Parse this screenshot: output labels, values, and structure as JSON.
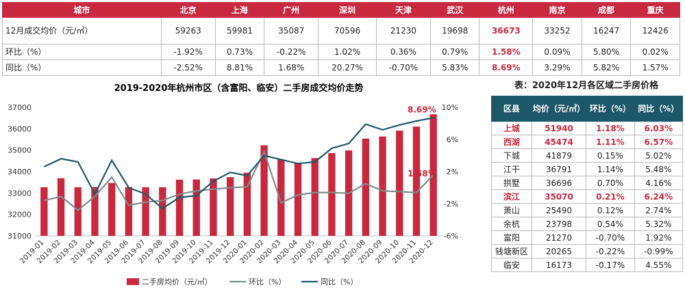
{
  "top_table": {
    "headers": [
      "城市",
      "北京",
      "上海",
      "广州",
      "深圳",
      "天津",
      "武汉",
      "杭州",
      "南京",
      "成都",
      "重庆"
    ],
    "rows": [
      {
        "label": "12月成交均价（元/㎡）",
        "values": [
          "59263",
          "59981",
          "35087",
          "70596",
          "21230",
          "19698",
          "36673",
          "33252",
          "16247",
          "12426"
        ]
      },
      {
        "label": "环比（%）",
        "values": [
          "-1.92%",
          "0.73%",
          "-0.22%",
          "1.02%",
          "0.36%",
          "0.79%",
          "1.58%",
          "0.09%",
          "5.80%",
          "0.02%"
        ]
      },
      {
        "label": "同比（%）",
        "values": [
          "-2.52%",
          "8.81%",
          "1.68%",
          "20.27%",
          "-0.70%",
          "5.83%",
          "8.69%",
          "3.29%",
          "5.82%",
          "1.57%"
        ]
      }
    ],
    "highlight_column": 7
  },
  "chart_data": {
    "type": "bar",
    "title": "2019-2020年杭州市区（含富阳、临安）二手房成交均价走势",
    "categories": [
      "2019-01",
      "2019-02",
      "2019-03",
      "2019-04",
      "2019-05",
      "2019-06",
      "2019-07",
      "2019-08",
      "2019-09",
      "2019-10",
      "2019-11",
      "2019-12",
      "2020-01",
      "2020-02",
      "2020-03",
      "2020-04",
      "2020-05",
      "2020-06",
      "2020-07",
      "2020-08",
      "2020-09",
      "2020-10",
      "2020-11",
      "2020-12"
    ],
    "series": [
      {
        "name": "二手房均价（元/㎡）",
        "kind": "bar",
        "axis": "left",
        "color": "#c8293f",
        "values": [
          33270,
          33690,
          33270,
          33280,
          33470,
          33280,
          33270,
          33270,
          33620,
          33630,
          33680,
          33740,
          33950,
          35230,
          34560,
          34420,
          34630,
          34860,
          34990,
          35540,
          35640,
          35910,
          36100,
          36673
        ]
      },
      {
        "name": "环比（%）",
        "kind": "line",
        "axis": "right",
        "color": "#7f8c8d",
        "values": [
          -1.6,
          -1.1,
          -2.8,
          -1.1,
          1.3,
          -2.2,
          -1.8,
          -1.6,
          -0.8,
          -0.4,
          -0.2,
          0.0,
          0.1,
          4.5,
          -1.9,
          -0.9,
          -0.6,
          -0.6,
          -0.7,
          0.5,
          -0.4,
          -0.5,
          -0.6,
          1.58
        ]
      },
      {
        "name": "同比（%）",
        "kind": "line",
        "axis": "right",
        "color": "#1d5868",
        "values": [
          2.6,
          3.6,
          3.2,
          -0.8,
          3.4,
          0.0,
          -0.8,
          -2.6,
          -1.2,
          -1.0,
          0.8,
          1.9,
          1.5,
          4.0,
          3.5,
          3.0,
          3.2,
          4.9,
          5.5,
          7.9,
          7.2,
          7.8,
          8.3,
          8.69
        ]
      }
    ],
    "ylim_left": [
      31000,
      37000
    ],
    "yticks_left": [
      31000,
      32000,
      33000,
      34000,
      35000,
      36000,
      37000
    ],
    "ylim_right": [
      -6,
      10
    ],
    "yticks_right": [
      "-6%",
      "-2%",
      "2%",
      "6%",
      "10%"
    ],
    "yticks_right_values": [
      -6,
      -2,
      2,
      6,
      10
    ],
    "annotations": [
      {
        "text": "8.69%",
        "series": 2,
        "index": 23
      },
      {
        "text": "1.58%",
        "series": 1,
        "index": 23
      }
    ],
    "legend_position": "bottom"
  },
  "right_table": {
    "title": "表：2020年12月各区域二手房价格",
    "headers": [
      "区县",
      "均价（元/㎡）",
      "环比（%）",
      "同比（%）"
    ],
    "rows": [
      {
        "cells": [
          "上城",
          "51940",
          "1.18%",
          "6.03%"
        ],
        "highlight": true
      },
      {
        "cells": [
          "西湖",
          "45474",
          "1.11%",
          "6.57%"
        ],
        "highlight": true
      },
      {
        "cells": [
          "下城",
          "41879",
          "0.15%",
          "5.02%"
        ],
        "highlight": false
      },
      {
        "cells": [
          "江干",
          "36791",
          "1.14%",
          "5.48%"
        ],
        "highlight": false
      },
      {
        "cells": [
          "拱墅",
          "36696",
          "0.70%",
          "4.16%"
        ],
        "highlight": false
      },
      {
        "cells": [
          "滨江",
          "35070",
          "0.21%",
          "6.24%"
        ],
        "highlight": true
      },
      {
        "cells": [
          "萧山",
          "25490",
          "0.12%",
          "2.74%"
        ],
        "highlight": false
      },
      {
        "cells": [
          "余杭",
          "23798",
          "0.54%",
          "5.32%"
        ],
        "highlight": false
      },
      {
        "cells": [
          "富阳",
          "21270",
          "-0.70%",
          "1.92%"
        ],
        "highlight": false
      },
      {
        "cells": [
          "钱塘新区",
          "20265",
          "-0.22%",
          "-0.99%"
        ],
        "highlight": false
      },
      {
        "cells": [
          "临安",
          "16173",
          "-0.17%",
          "4.55%"
        ],
        "highlight": false
      }
    ]
  }
}
